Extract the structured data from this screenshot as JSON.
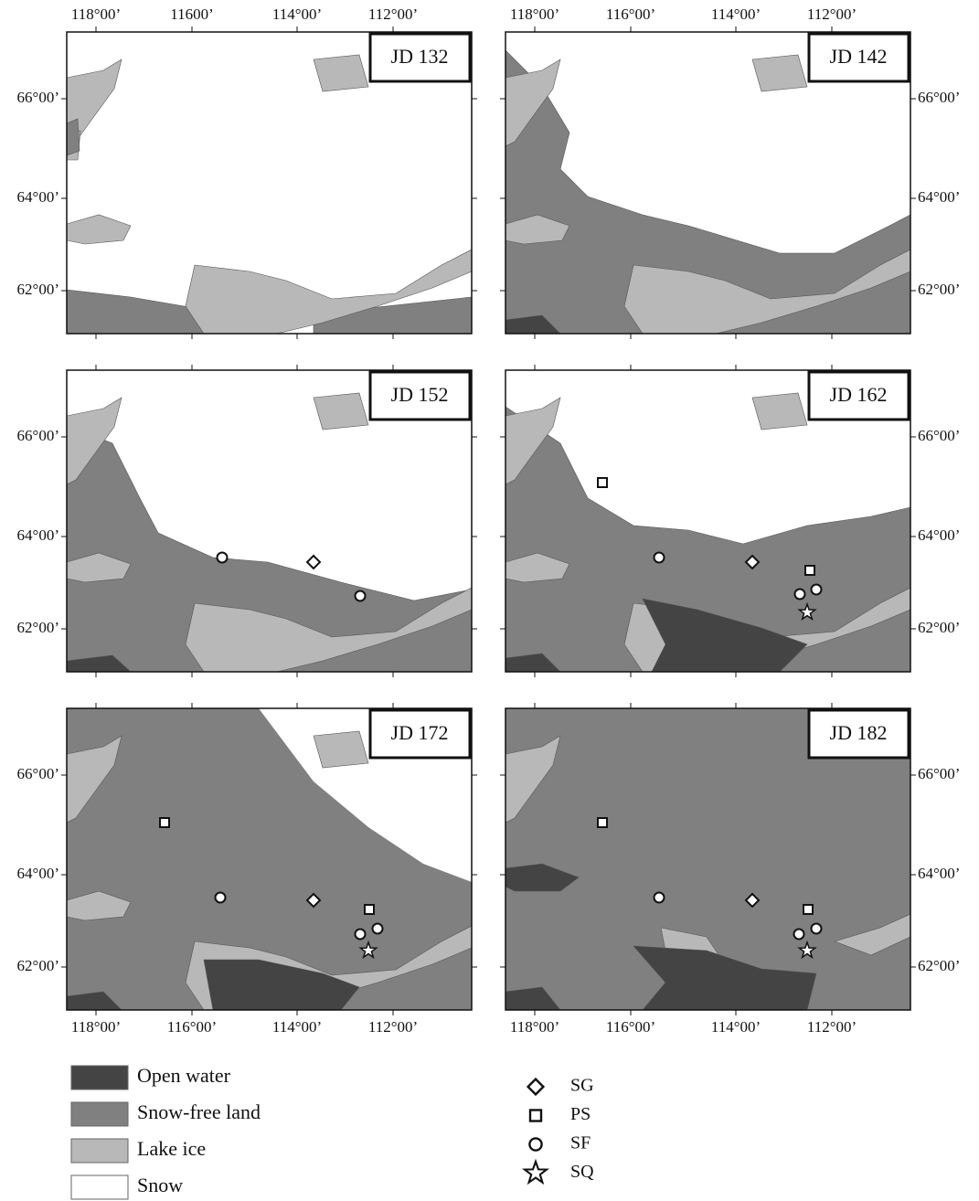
{
  "panels": [
    {
      "label": "JD 132"
    },
    {
      "label": "JD 142"
    },
    {
      "label": "JD 152"
    },
    {
      "label": "JD 162"
    },
    {
      "label": "JD 172"
    },
    {
      "label": "JD 182"
    }
  ],
  "axes": {
    "top_left": [
      "118°00’",
      "11600’",
      "114°00’",
      "112°00’"
    ],
    "top_right": [
      "118°00’",
      "116°00’",
      "114°00’",
      "112°00’"
    ],
    "bottom_left": [
      "118°00’",
      "116°00’",
      "114°00’",
      "112°00’"
    ],
    "bottom_right": [
      "118°00’",
      "116°00’",
      "114°00’",
      "112°00’"
    ],
    "left": [
      "66°00’",
      "64°00’",
      "62°00’"
    ],
    "right": [
      "66°00’",
      "64°00’",
      "62°00’"
    ]
  },
  "legend": {
    "classes": [
      "Open water",
      "Snow-free land",
      "Lake ice",
      "Snow"
    ],
    "sites": [
      "SG",
      "PS",
      "SF",
      "SQ"
    ]
  }
}
